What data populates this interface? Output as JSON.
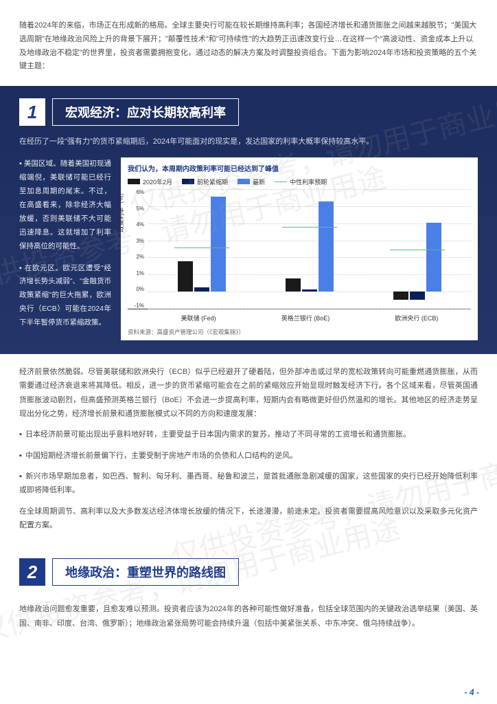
{
  "intro": "随着2024年的来临，市场正在形成新的格局。全球主要央行可能在较长期维持高利率；各国经济增长和通货膨胀之间越来越脱节；\"美国大选周期\"在地缘政治风险上升的背景下展开；\"颠覆性技术\"和\"可持续性\"的大趋势正迅速改变行业…在这样一个\"高波动性、资金成本上升以及地缘政治不稳定\"的世界里，投资者需要拥抱变化，通过动态的解决方案及时调整投资组合。下面为影响2024年市场和投资策略的五个关键主题：",
  "watermark": "仅供投资参考，请勿用于商业用途",
  "section1": {
    "num": "1",
    "title": "宏观经济：应对长期较高利率",
    "lead": "在经历了一段\"强有力\"的货币紧缩期后，2024年可能面对的现实是，发达国家的利率大概率保持较高水平。",
    "left_p1": "▪ 美国区域。随着美国初现通缩端倪，美联储可能已经行至加息周期的尾末。不过，在高盛看来，除非经济大幅放缓，否则美联储不大可能迅速降息。这就增加了利率保持高位的可能性。",
    "left_p2": "▪ 在欧元区。欧元区遭受\"经济增长势头减弱\"、\"金融货币政策紧缩\"的巨大拖累，欧洲央行（ECB）可能在2024年下半年暂停货币紧缩政策。"
  },
  "chart": {
    "title": "我们认为，本周期内政策利率可能已经达到了峰值",
    "legend": {
      "s1": "2020年2月",
      "c1": "#1a1a1a",
      "s2": "前轮紧缩期",
      "c2": "#0a1f5c",
      "s3": "最新",
      "c3": "#4a7fe8",
      "s4": "中性利率预期",
      "c4": "#5ab88a"
    },
    "y_label": "政策利率（%）",
    "y_ticks": [
      "6%",
      "5%",
      "4%",
      "3%",
      "2%",
      "1%",
      "0%",
      "-1%"
    ],
    "y_min": -1,
    "y_max": 6,
    "groups": [
      {
        "label": "美联储 (Fed)",
        "s1": 1.75,
        "s2": 0.25,
        "s3": 5.5,
        "neutral": 2.5
      },
      {
        "label": "英格兰银行 (BoE)",
        "s1": 0.75,
        "s2": 0.1,
        "s3": 5.25,
        "neutral": 3.7
      },
      {
        "label": "欧洲央行 (ECB)",
        "s1": -0.5,
        "s2": -0.5,
        "s3": 4.0,
        "neutral": 2.4
      }
    ],
    "source": "资料来源：高盛资产管理公司（《宏观集锦》）"
  },
  "body": {
    "p1": "经济前景依然脆弱。尽管美联储和欧洲央行（ECB）似乎已经避开了硬着陆，但外部冲击或过早的宽松政策转向可能重燃通货膨胀，从而需要通过经济衰退来将其降低。相反，进一步的货币紧缩可能会在之前的紧缩效应开始显现时触发经济下行。各个区域来看，尽管英国通货膨胀波动剧烈，但高盛预测英格兰银行（BoE）不会进一步提高利率，短期内会有略微更好但仍然温和的增长。其他地区的经济走势呈现出分化之势，经济增长前景和通货膨胀模式以不同的方向和速度发展：",
    "b1": "日本经济前景可能出现出乎意料地好转，主要受益于日本国内需求的复苏，推动了不同寻常的工资增长和通货膨胀。",
    "b2": "中国短期经济增长前景偏下行，主要受制于房地产市场的负债和人口结构的逆风。",
    "b3": "新兴市场早期加息者，如巴西、智利、匈牙利、墨西哥、秘鲁和波兰，是首批通胀急剧减缓的国家，这些国家的央行已经开始降低利率或即将降低利率。",
    "p2": "在全球周期调节、高利率以及大多数发达经济体增长放缓的情况下，长途漫漫，前途未定。投资者需要提高风险意识以及采取多元化资产配置方案。"
  },
  "section2": {
    "num": "2",
    "title": "地缘政治：重塑世界的路线图"
  },
  "outro": "地缘政治问题愈发重要，且愈发难以预测。投资者应该为2024年的各种可能性做好准备，包括全球范围内的关键政治选举结果（美国、英国、南非、印度、台湾、俄罗斯）；地缘政治紧张局势可能会持续升温（包括中美紧张关系、中东冲突、俄乌持续战争）。",
  "page": "- 4 -"
}
